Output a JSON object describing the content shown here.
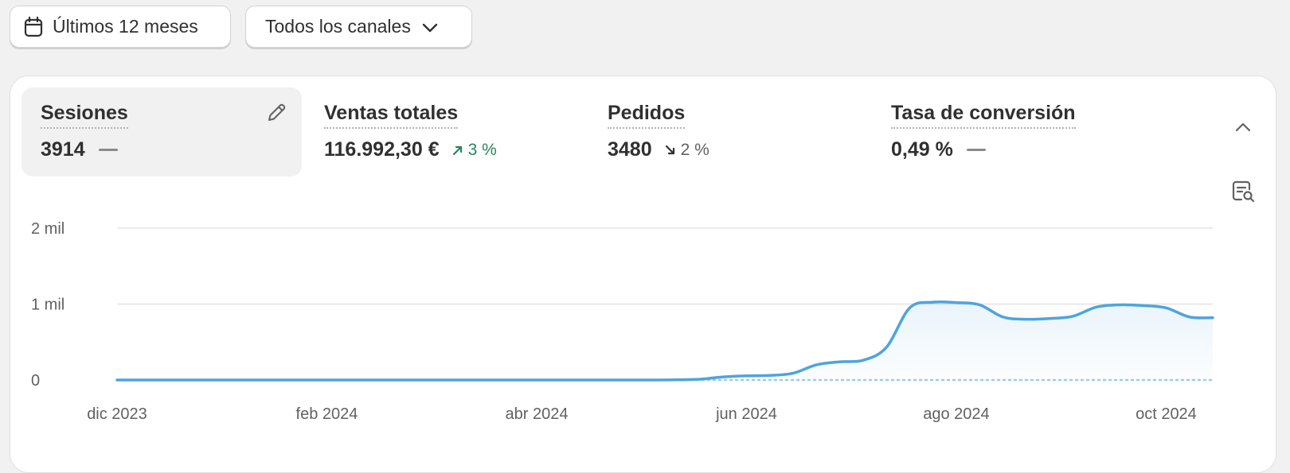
{
  "filters": {
    "date_label": "Últimos 12 meses",
    "channels_label": "Todos los canales"
  },
  "metrics": [
    {
      "title": "Sesiones",
      "value": "3914",
      "change": null
    },
    {
      "title": "Ventas totales",
      "value": "116.992,30 €",
      "change": {
        "direction": "up",
        "text": "3 %"
      }
    },
    {
      "title": "Pedidos",
      "value": "3480",
      "change": {
        "direction": "down",
        "text": "2 %"
      }
    },
    {
      "title": "Tasa de conversión",
      "value": "0,49 %",
      "change": null
    }
  ],
  "colors": {
    "line": "#4ea4dd",
    "accent_up": "#29845a",
    "muted": "#616161"
  },
  "icons": [
    "calendar-icon",
    "chevron-down-icon",
    "pencil-icon",
    "chevron-up-icon",
    "explore-report-icon",
    "arrow-up-right-icon",
    "arrow-down-right-icon"
  ],
  "chart_data": {
    "type": "line",
    "y_ticks": [
      "2 mil",
      "1 mil",
      "0"
    ],
    "y_tick_values": [
      2000,
      1000,
      0
    ],
    "ylim": [
      0,
      2000
    ],
    "x_tick_labels": [
      "dic 2023",
      "feb 2024",
      "abr 2024",
      "jun 2024",
      "ago 2024",
      "oct 2024"
    ],
    "x_tick_weeks": [
      0,
      9,
      18,
      27,
      36,
      45
    ],
    "grid": true,
    "series": [
      {
        "values": [
          0,
          0,
          0,
          0,
          0,
          0,
          0,
          0,
          0,
          0,
          0,
          0,
          0,
          0,
          0,
          0,
          0,
          0,
          0,
          0,
          0,
          0,
          0,
          0,
          2,
          10,
          40,
          55,
          60,
          90,
          200,
          240,
          260,
          430,
          950,
          1025,
          1020,
          990,
          830,
          800,
          810,
          840,
          960,
          990,
          980,
          950,
          830,
          820
        ]
      },
      {
        "values": [
          0,
          0,
          0,
          0,
          0,
          0,
          0,
          0,
          0,
          0,
          0,
          0,
          0,
          0,
          0,
          0,
          0,
          0,
          0,
          0,
          0,
          0,
          0,
          0,
          0,
          0,
          0,
          0,
          0,
          0,
          0,
          0,
          0,
          0,
          0,
          0,
          0,
          0,
          0,
          0,
          0,
          0,
          0,
          0,
          0,
          0,
          0,
          0
        ]
      }
    ]
  }
}
